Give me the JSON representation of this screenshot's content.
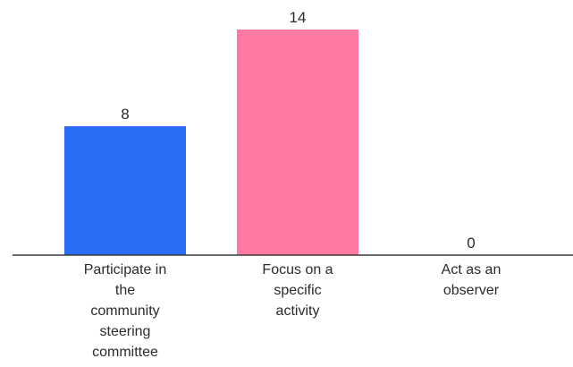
{
  "chart_data": {
    "type": "bar",
    "title": "",
    "xlabel": "",
    "ylabel": "",
    "ylim": [
      0,
      14
    ],
    "grid": false,
    "categories": [
      [
        "Participate in",
        "the",
        "community",
        "steering",
        "committee"
      ],
      [
        "Focus on a",
        "specific",
        "activity"
      ],
      [
        "Act as an",
        "observer"
      ]
    ],
    "values": [
      8,
      14,
      0
    ],
    "colors": [
      "#2a6ef5",
      "#ff7aa2",
      "#9e9e9e"
    ]
  }
}
